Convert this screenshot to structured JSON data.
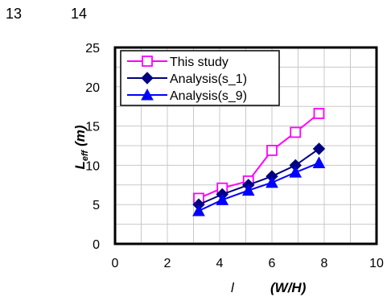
{
  "header": {
    "left_number": "13",
    "right_number": "14"
  },
  "chart_data": {
    "type": "line",
    "title": "",
    "xlabel_parts": [
      "l",
      "(W/H)"
    ],
    "ylabel_main": "L",
    "ylabel_sub": "eff",
    "ylabel_unit": "(m)",
    "xlim": [
      0,
      10
    ],
    "ylim": [
      0,
      25
    ],
    "xticks": [
      0,
      2,
      4,
      6,
      8,
      10
    ],
    "yticks": [
      0,
      5,
      10,
      15,
      20,
      25
    ],
    "grid": true,
    "legend_position": "top-left",
    "series": [
      {
        "name": "This study",
        "marker": "open-square",
        "color": "#ff00ff",
        "x": [
          3.2,
          4.1,
          5.1,
          6.0,
          6.9,
          7.8
        ],
        "y": [
          5.8,
          7.1,
          8.0,
          11.9,
          14.2,
          16.6
        ]
      },
      {
        "name": "Analysis(s_1)",
        "marker": "filled-diamond",
        "color": "#000080",
        "x": [
          3.2,
          4.1,
          5.1,
          6.0,
          6.9,
          7.8
        ],
        "y": [
          5.0,
          6.3,
          7.5,
          8.6,
          10.0,
          12.1
        ]
      },
      {
        "name": "Analysis(s_9)",
        "marker": "filled-triangle",
        "color": "#0000ff",
        "x": [
          3.2,
          4.1,
          5.1,
          6.0,
          6.9,
          7.8
        ],
        "y": [
          4.2,
          5.6,
          6.8,
          7.8,
          9.1,
          10.3
        ]
      }
    ]
  }
}
